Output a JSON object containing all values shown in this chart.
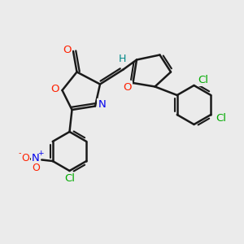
{
  "bg_color": "#ebebeb",
  "bond_color": "#1a1a1a",
  "bond_width": 1.8,
  "atom_colors": {
    "O": "#ff2000",
    "N": "#0000ee",
    "Cl": "#00aa00",
    "H": "#008888",
    "C": "#1a1a1a"
  },
  "font_size": 9.5
}
